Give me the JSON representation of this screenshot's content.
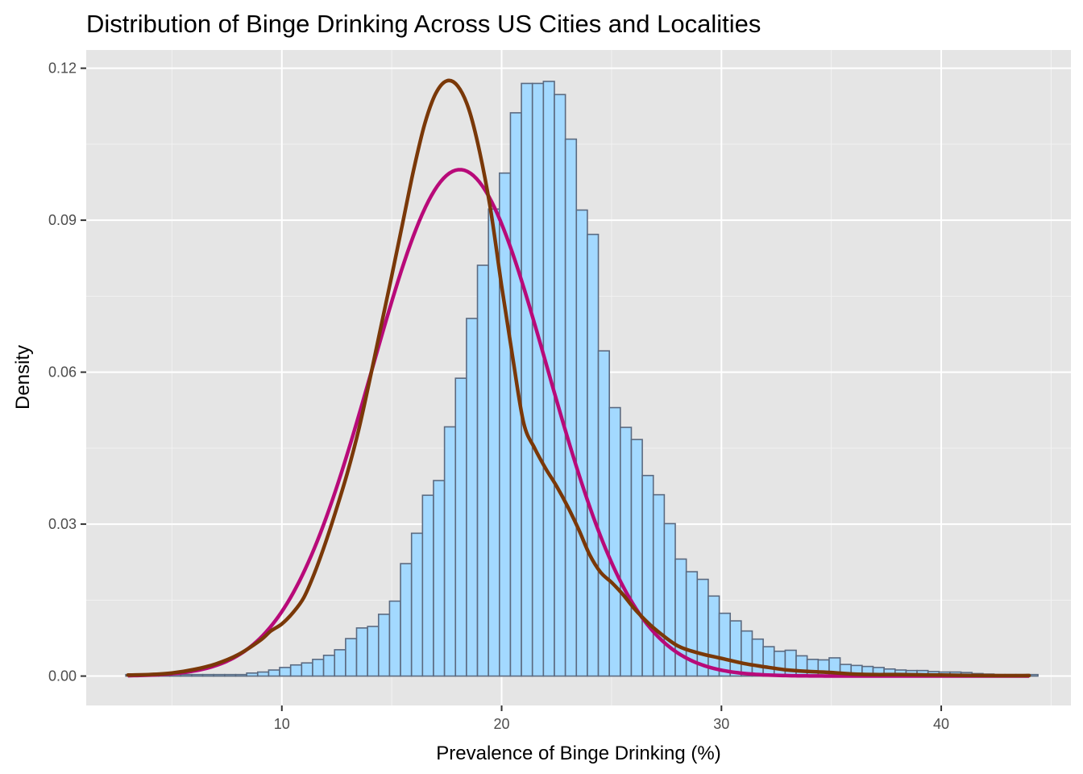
{
  "chart_data": {
    "type": "bar",
    "title": "Distribution of Binge Drinking Across US Cities and Localities",
    "xlabel": "Prevalence of Binge Drinking (%)",
    "ylabel": "Density",
    "xlim": [
      1.1,
      45.9
    ],
    "ylim": [
      -0.0058,
      0.1236
    ],
    "x_ticks": [
      10,
      20,
      30,
      40
    ],
    "x_tick_labels": [
      "10",
      "20",
      "30",
      "40"
    ],
    "y_ticks": [
      0.0,
      0.03,
      0.06,
      0.09,
      0.12
    ],
    "y_tick_labels": [
      "0.00",
      "0.03",
      "0.06",
      "0.09",
      "0.12"
    ],
    "grid": true,
    "background": "#e5e5e5",
    "histogram": {
      "bin_start": 2.9,
      "bin_width": 0.5,
      "fill": "#a3d9ff",
      "outline": "#5b6a80",
      "densities": [
        0.0003,
        0.0003,
        0.0003,
        0.0003,
        0.0003,
        0.0003,
        0.0003,
        0.0003,
        0.0003,
        0.0003,
        0.0003,
        0.0006,
        0.0008,
        0.0012,
        0.0017,
        0.0022,
        0.0026,
        0.0033,
        0.0041,
        0.0052,
        0.0074,
        0.0095,
        0.0098,
        0.0122,
        0.0148,
        0.0222,
        0.0282,
        0.0357,
        0.0386,
        0.0492,
        0.0588,
        0.0706,
        0.0811,
        0.0922,
        0.0993,
        0.1112,
        0.117,
        0.117,
        0.1174,
        0.1148,
        0.106,
        0.092,
        0.0872,
        0.0642,
        0.053,
        0.0491,
        0.0467,
        0.0396,
        0.0358,
        0.0301,
        0.0231,
        0.0206,
        0.0191,
        0.0158,
        0.0124,
        0.0109,
        0.0089,
        0.0073,
        0.0058,
        0.0049,
        0.0051,
        0.004,
        0.0033,
        0.0032,
        0.0036,
        0.0023,
        0.0021,
        0.0019,
        0.0017,
        0.0014,
        0.0012,
        0.0011,
        0.0011,
        0.0009,
        0.0008,
        0.0008,
        0.0007,
        0.0005,
        0.0004,
        0.0003,
        0.0003,
        0.0003,
        0.0003
      ]
    },
    "normal_curve": {
      "color": "#b80a79",
      "mean": 18.1,
      "sd": 3.99,
      "x_range": [
        3.0,
        44.0
      ]
    },
    "density_curve": {
      "color": "#7a3808",
      "x": [
        3.0,
        4.0,
        5.0,
        6.0,
        7.0,
        8.0,
        9.0,
        9.5,
        10.0,
        10.5,
        11.0,
        11.5,
        12.0,
        12.5,
        13.0,
        13.5,
        14.0,
        14.5,
        15.0,
        15.5,
        16.0,
        16.5,
        17.0,
        17.5,
        18.0,
        18.5,
        19.0,
        19.5,
        20.0,
        20.5,
        21.0,
        21.5,
        22.0,
        22.5,
        23.0,
        23.5,
        24.0,
        24.5,
        25.0,
        25.5,
        26.0,
        26.5,
        27.0,
        28.0,
        29.0,
        30.0,
        31.0,
        32.0,
        33.0,
        34.0,
        35.0,
        36.0,
        37.0,
        38.0,
        40.0,
        42.0,
        44.0
      ],
      "y": [
        0.0002,
        0.0003,
        0.0006,
        0.0013,
        0.0024,
        0.0042,
        0.007,
        0.0089,
        0.0103,
        0.0125,
        0.0155,
        0.0205,
        0.0265,
        0.0332,
        0.0404,
        0.0487,
        0.0585,
        0.0688,
        0.079,
        0.0895,
        0.1,
        0.109,
        0.115,
        0.1175,
        0.1165,
        0.112,
        0.1035,
        0.092,
        0.077,
        0.063,
        0.05,
        0.045,
        0.041,
        0.0375,
        0.0335,
        0.029,
        0.024,
        0.0205,
        0.0185,
        0.0162,
        0.0135,
        0.0112,
        0.0092,
        0.006,
        0.0045,
        0.0035,
        0.0025,
        0.0018,
        0.0012,
        0.0009,
        0.0007,
        0.0004,
        0.0003,
        0.0003,
        0.0002,
        0.0001,
        0.0001
      ]
    }
  }
}
